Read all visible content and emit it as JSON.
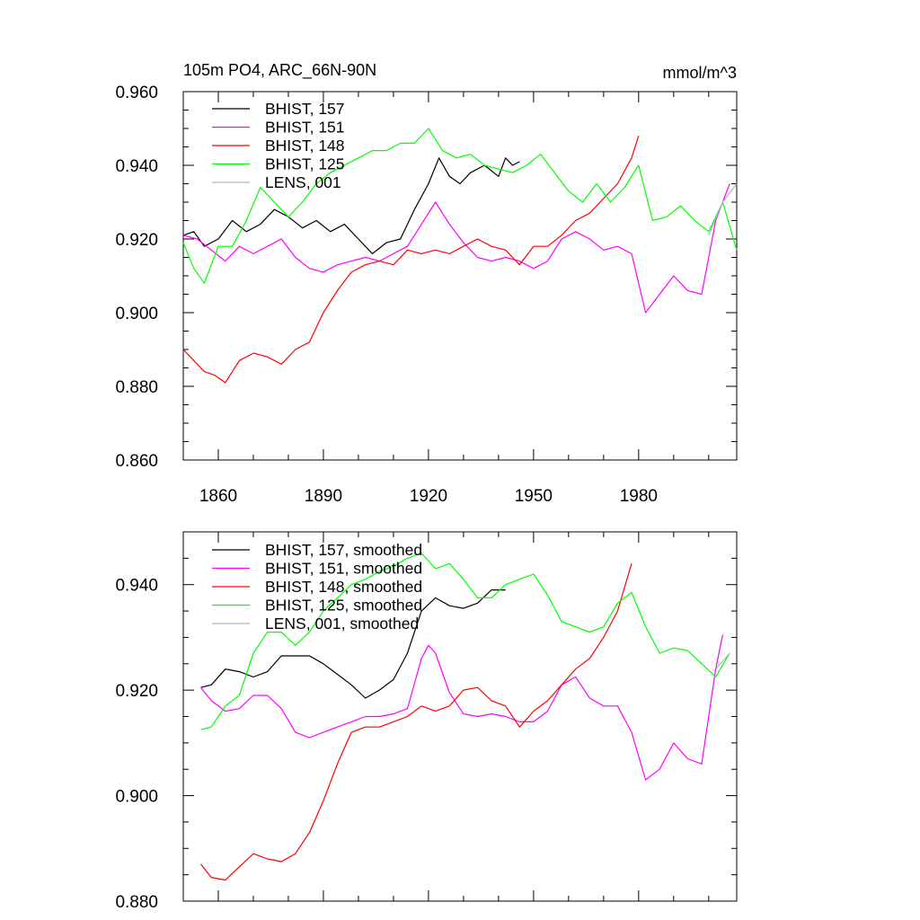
{
  "title": "105m PO4, ARC_66N-90N",
  "units": "mmol/m^3",
  "colors": {
    "s157": "#000000",
    "s151": "#ff00ff",
    "s148": "#ff0000",
    "s125": "#00ff00",
    "lens": "#b3b3b3"
  },
  "chart_data": [
    {
      "type": "line",
      "title": "105m PO4, ARC_66N-90N",
      "ylabel_right": "mmol/m^3",
      "xlim": [
        1850,
        2008
      ],
      "ylim": [
        0.86,
        0.96
      ],
      "x_ticks": [
        1860,
        1890,
        1920,
        1950,
        1980
      ],
      "x_tick_labels": [
        "1860",
        "1890",
        "1920",
        "1950",
        "1980"
      ],
      "y_ticks": [
        0.86,
        0.88,
        0.9,
        0.92,
        0.94,
        0.96
      ],
      "y_tick_labels": [
        "0.860",
        "0.880",
        "0.900",
        "0.920",
        "0.940",
        "0.960"
      ],
      "legend_position": "top-left",
      "series": [
        {
          "name": "BHIST, 157",
          "color": "#000000",
          "x": [
            1850,
            1853,
            1856,
            1860,
            1864,
            1868,
            1872,
            1876,
            1880,
            1884,
            1888,
            1892,
            1896,
            1900,
            1904,
            1908,
            1912,
            1916,
            1920,
            1923,
            1926,
            1929,
            1932,
            1936,
            1940,
            1942,
            1944,
            1946
          ],
          "y": [
            0.921,
            0.922,
            0.918,
            0.92,
            0.925,
            0.922,
            0.924,
            0.928,
            0.926,
            0.923,
            0.925,
            0.922,
            0.924,
            0.92,
            0.916,
            0.919,
            0.92,
            0.928,
            0.935,
            0.942,
            0.937,
            0.935,
            0.938,
            0.94,
            0.937,
            0.942,
            0.94,
            0.941
          ]
        },
        {
          "name": "BHIST, 151",
          "color": "#ff00ff",
          "x": [
            1850,
            1854,
            1858,
            1862,
            1866,
            1870,
            1874,
            1878,
            1882,
            1886,
            1890,
            1894,
            1898,
            1902,
            1906,
            1910,
            1914,
            1918,
            1922,
            1926,
            1930,
            1934,
            1938,
            1942,
            1946,
            1950,
            1954,
            1958,
            1962,
            1966,
            1970,
            1974,
            1978,
            1982,
            1986,
            1990,
            1994,
            1998,
            2002,
            2006
          ],
          "y": [
            0.921,
            0.92,
            0.917,
            0.914,
            0.918,
            0.916,
            0.918,
            0.92,
            0.915,
            0.912,
            0.911,
            0.913,
            0.914,
            0.915,
            0.914,
            0.916,
            0.918,
            0.924,
            0.93,
            0.924,
            0.919,
            0.915,
            0.914,
            0.915,
            0.914,
            0.912,
            0.914,
            0.92,
            0.922,
            0.92,
            0.917,
            0.918,
            0.916,
            0.9,
            0.905,
            0.91,
            0.906,
            0.905,
            0.925,
            0.935
          ]
        },
        {
          "name": "BHIST, 148",
          "color": "#ff0000",
          "x": [
            1850,
            1853,
            1856,
            1859,
            1862,
            1866,
            1870,
            1874,
            1878,
            1882,
            1886,
            1890,
            1894,
            1898,
            1902,
            1906,
            1910,
            1914,
            1918,
            1922,
            1926,
            1930,
            1934,
            1938,
            1942,
            1946,
            1950,
            1954,
            1958,
            1962,
            1966,
            1970,
            1974,
            1978,
            1980
          ],
          "y": [
            0.89,
            0.887,
            0.884,
            0.883,
            0.881,
            0.887,
            0.889,
            0.888,
            0.886,
            0.89,
            0.892,
            0.9,
            0.906,
            0.911,
            0.913,
            0.914,
            0.913,
            0.917,
            0.916,
            0.917,
            0.916,
            0.918,
            0.92,
            0.918,
            0.917,
            0.913,
            0.918,
            0.918,
            0.921,
            0.925,
            0.927,
            0.931,
            0.935,
            0.942,
            0.948
          ]
        },
        {
          "name": "BHIST, 125",
          "color": "#00ff00",
          "x": [
            1850,
            1853,
            1856,
            1860,
            1864,
            1868,
            1872,
            1876,
            1880,
            1884,
            1888,
            1892,
            1896,
            1900,
            1904,
            1908,
            1912,
            1916,
            1920,
            1924,
            1928,
            1932,
            1936,
            1940,
            1944,
            1948,
            1952,
            1956,
            1960,
            1964,
            1968,
            1972,
            1976,
            1980,
            1984,
            1988,
            1992,
            1996,
            2000,
            2004,
            2008
          ],
          "y": [
            0.919,
            0.912,
            0.908,
            0.918,
            0.918,
            0.925,
            0.934,
            0.93,
            0.926,
            0.93,
            0.935,
            0.938,
            0.94,
            0.942,
            0.944,
            0.944,
            0.946,
            0.946,
            0.95,
            0.944,
            0.942,
            0.943,
            0.94,
            0.939,
            0.938,
            0.94,
            0.943,
            0.938,
            0.933,
            0.93,
            0.935,
            0.93,
            0.934,
            0.94,
            0.925,
            0.926,
            0.929,
            0.925,
            0.922,
            0.93,
            0.917
          ]
        },
        {
          "name": "LENS, 001",
          "color": "#b3b3b3",
          "x": [
            2000,
            2004,
            2008
          ],
          "y": [
            0.921,
            0.93,
            0.935
          ]
        }
      ]
    },
    {
      "type": "line",
      "title": "",
      "xlim": [
        1850,
        2008
      ],
      "ylim": [
        0.88,
        0.95
      ],
      "y_ticks": [
        0.88,
        0.9,
        0.92,
        0.94
      ],
      "y_tick_labels": [
        "0.880",
        "0.900",
        "0.920",
        "0.940"
      ],
      "legend_position": "top-left",
      "series": [
        {
          "name": "BHIST, 157, smoothed",
          "color": "#000000",
          "x": [
            1855,
            1858,
            1862,
            1866,
            1870,
            1874,
            1878,
            1882,
            1886,
            1890,
            1894,
            1898,
            1902,
            1906,
            1910,
            1914,
            1918,
            1922,
            1926,
            1930,
            1934,
            1938,
            1942
          ],
          "y": [
            0.9205,
            0.921,
            0.924,
            0.9235,
            0.9225,
            0.9235,
            0.9265,
            0.9265,
            0.9265,
            0.925,
            0.923,
            0.921,
            0.9185,
            0.92,
            0.922,
            0.927,
            0.935,
            0.9375,
            0.936,
            0.9355,
            0.9365,
            0.939,
            0.939
          ]
        },
        {
          "name": "BHIST, 151, smoothed",
          "color": "#ff00ff",
          "x": [
            1855,
            1858,
            1862,
            1866,
            1870,
            1874,
            1878,
            1882,
            1886,
            1890,
            1894,
            1898,
            1902,
            1906,
            1910,
            1914,
            1918,
            1920,
            1922,
            1926,
            1930,
            1934,
            1938,
            1942,
            1946,
            1950,
            1954,
            1958,
            1962,
            1966,
            1970,
            1974,
            1978,
            1982,
            1986,
            1990,
            1994,
            1998,
            2002,
            2004
          ],
          "y": [
            0.9205,
            0.918,
            0.916,
            0.9165,
            0.919,
            0.919,
            0.9165,
            0.912,
            0.911,
            0.912,
            0.913,
            0.914,
            0.915,
            0.915,
            0.9155,
            0.9165,
            0.926,
            0.9285,
            0.927,
            0.9195,
            0.9155,
            0.915,
            0.9155,
            0.915,
            0.914,
            0.914,
            0.916,
            0.921,
            0.9225,
            0.9185,
            0.917,
            0.917,
            0.912,
            0.903,
            0.905,
            0.91,
            0.907,
            0.906,
            0.924,
            0.9305
          ]
        },
        {
          "name": "BHIST, 148, smoothed",
          "color": "#ff0000",
          "x": [
            1855,
            1858,
            1862,
            1866,
            1870,
            1874,
            1878,
            1882,
            1886,
            1890,
            1894,
            1898,
            1902,
            1906,
            1910,
            1914,
            1918,
            1922,
            1926,
            1930,
            1934,
            1938,
            1942,
            1946,
            1950,
            1954,
            1958,
            1962,
            1966,
            1970,
            1974,
            1978
          ],
          "y": [
            0.887,
            0.8845,
            0.884,
            0.8865,
            0.889,
            0.888,
            0.8875,
            0.889,
            0.893,
            0.899,
            0.906,
            0.912,
            0.913,
            0.913,
            0.914,
            0.915,
            0.917,
            0.916,
            0.917,
            0.92,
            0.9205,
            0.918,
            0.917,
            0.913,
            0.916,
            0.918,
            0.921,
            0.924,
            0.926,
            0.93,
            0.935,
            0.944
          ]
        },
        {
          "name": "BHIST, 125, smoothed",
          "color": "#00ff00",
          "x": [
            1855,
            1858,
            1862,
            1866,
            1870,
            1874,
            1878,
            1882,
            1886,
            1890,
            1894,
            1898,
            1902,
            1906,
            1910,
            1914,
            1918,
            1922,
            1926,
            1930,
            1934,
            1938,
            1942,
            1946,
            1950,
            1954,
            1958,
            1962,
            1966,
            1970,
            1974,
            1978,
            1982,
            1986,
            1990,
            1994,
            1998,
            2002,
            2006
          ],
          "y": [
            0.9125,
            0.913,
            0.917,
            0.919,
            0.927,
            0.931,
            0.931,
            0.9285,
            0.931,
            0.935,
            0.9375,
            0.94,
            0.941,
            0.9425,
            0.9435,
            0.945,
            0.946,
            0.943,
            0.944,
            0.941,
            0.9375,
            0.9375,
            0.94,
            0.941,
            0.942,
            0.938,
            0.933,
            0.932,
            0.931,
            0.932,
            0.9365,
            0.9385,
            0.932,
            0.927,
            0.928,
            0.9275,
            0.925,
            0.9225,
            0.927
          ]
        },
        {
          "name": "LENS, 001, smoothed",
          "color": "#b3b3b3",
          "x": [
            2002,
            2006
          ],
          "y": [
            0.924,
            0.927
          ]
        }
      ]
    }
  ]
}
